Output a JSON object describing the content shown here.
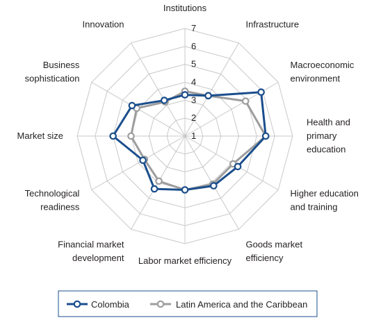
{
  "chart_data": {
    "type": "radar",
    "categories": [
      "Institutions",
      "Infrastructure",
      "Macroeconomic environment",
      "Health and primary education",
      "Higher education and training",
      "Goods market efficiency",
      "Labor market efficiency",
      "Financial market development",
      "Technological readiness",
      "Market size",
      "Business sophistication",
      "Innovation"
    ],
    "category_lines": [
      [
        "Institutions"
      ],
      [
        "Infrastructure"
      ],
      [
        "Macroeconomic",
        "environment"
      ],
      [
        "Health and",
        "primary",
        "education"
      ],
      [
        "Higher education",
        "and training"
      ],
      [
        "Goods market",
        "efficiency"
      ],
      [
        "Labor market efficiency"
      ],
      [
        "Financial market",
        "development"
      ],
      [
        "Technological",
        "readiness"
      ],
      [
        "Market size"
      ],
      [
        "Business",
        "sophistication"
      ],
      [
        "Innovation"
      ]
    ],
    "rlim": [
      1,
      7
    ],
    "ticks": [
      "1",
      "2",
      "3",
      "4",
      "5",
      "6",
      "7"
    ],
    "series": [
      {
        "name": "Colombia",
        "color": "#1a4e8c",
        "values": [
          3.3,
          3.6,
          5.9,
          5.5,
          4.4,
          4.2,
          4.0,
          4.4,
          3.7,
          5.0,
          4.4,
          3.3
        ]
      },
      {
        "name": "Latin America and the Caribbean",
        "color": "#9d9d9d",
        "values": [
          3.5,
          3.6,
          4.9,
          5.5,
          4.1,
          4.1,
          4.0,
          3.9,
          3.6,
          4.0,
          4.1,
          3.2
        ]
      }
    ],
    "grid": true,
    "legend_position": "bottom"
  }
}
